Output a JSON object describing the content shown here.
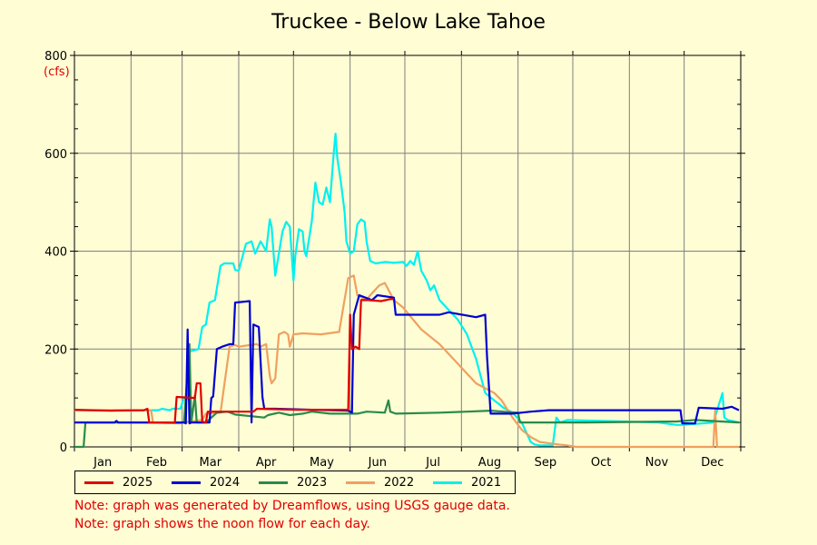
{
  "colors": {
    "background": "#fefdd4",
    "grid": "#808080",
    "axis": "#000000",
    "unit_label": "#e00000",
    "note_text": "#e00000"
  },
  "notes": [
    "Note: graph was generated by Dreamflows, using USGS gauge data.",
    "Note: graph shows the noon flow for each day."
  ],
  "chart_data": {
    "type": "line",
    "title": "Truckee - Below Lake Tahoe",
    "xlabel": "",
    "ylabel": "(cfs)",
    "xlim": [
      0,
      365
    ],
    "ylim": [
      0,
      800
    ],
    "y_ticks": [
      0,
      200,
      400,
      600,
      800
    ],
    "x_ticks": [
      "Jan",
      "Feb",
      "Mar",
      "Apr",
      "May",
      "Jun",
      "Jul",
      "Aug",
      "Sep",
      "Oct",
      "Nov",
      "Dec"
    ],
    "grid": true,
    "legend_position": "bottom",
    "series": [
      {
        "name": "2025",
        "color": "#e00000",
        "points": [
          [
            0,
            76
          ],
          [
            20,
            74
          ],
          [
            38,
            75
          ],
          [
            40,
            78
          ],
          [
            41,
            50
          ],
          [
            55,
            50
          ],
          [
            56,
            102
          ],
          [
            66,
            100
          ],
          [
            67,
            130
          ],
          [
            69,
            130
          ],
          [
            70,
            52
          ],
          [
            72,
            50
          ],
          [
            73,
            72
          ],
          [
            98,
            72
          ],
          [
            100,
            78
          ],
          [
            122,
            76
          ],
          [
            125,
            76
          ],
          [
            150,
            76
          ],
          [
            151,
            270
          ],
          [
            152,
            200
          ],
          [
            154,
            205
          ],
          [
            156,
            200
          ],
          [
            157,
            300
          ],
          [
            159,
            300
          ],
          [
            161,
            300
          ],
          [
            168,
            298
          ],
          [
            173,
            302
          ],
          [
            175,
            302
          ]
        ]
      },
      {
        "name": "2024",
        "color": "#0000d0",
        "points": [
          [
            0,
            50
          ],
          [
            22,
            50
          ],
          [
            23,
            53
          ],
          [
            24,
            50
          ],
          [
            43,
            50
          ],
          [
            60,
            50
          ],
          [
            61,
            48
          ],
          [
            62,
            240
          ],
          [
            63,
            48
          ],
          [
            64,
            50
          ],
          [
            74,
            50
          ],
          [
            75,
            100
          ],
          [
            76,
            103
          ],
          [
            78,
            200
          ],
          [
            81,
            205
          ],
          [
            85,
            210
          ],
          [
            87,
            210
          ],
          [
            88,
            295
          ],
          [
            96,
            298
          ],
          [
            97,
            50
          ],
          [
            98,
            250
          ],
          [
            101,
            245
          ],
          [
            103,
            102
          ],
          [
            104,
            78
          ],
          [
            110,
            78
          ],
          [
            130,
            76
          ],
          [
            150,
            74
          ],
          [
            152,
            70
          ],
          [
            153,
            270
          ],
          [
            156,
            310
          ],
          [
            163,
            300
          ],
          [
            166,
            310
          ],
          [
            175,
            305
          ],
          [
            176,
            270
          ],
          [
            200,
            270
          ],
          [
            205,
            275
          ],
          [
            220,
            265
          ],
          [
            225,
            270
          ],
          [
            226,
            185
          ],
          [
            228,
            68
          ],
          [
            240,
            68
          ],
          [
            250,
            72
          ],
          [
            260,
            75
          ],
          [
            290,
            75
          ],
          [
            320,
            75
          ],
          [
            332,
            75
          ],
          [
            333,
            48
          ],
          [
            340,
            48
          ],
          [
            342,
            80
          ],
          [
            355,
            78
          ],
          [
            360,
            82
          ],
          [
            364,
            75
          ]
        ]
      },
      {
        "name": "2023",
        "color": "#2a8a4a",
        "points": [
          [
            0,
            0
          ],
          [
            5,
            0
          ],
          [
            6,
            50
          ],
          [
            60,
            50
          ],
          [
            63,
            210
          ],
          [
            64,
            50
          ],
          [
            66,
            105
          ],
          [
            67,
            50
          ],
          [
            72,
            50
          ],
          [
            78,
            70
          ],
          [
            84,
            72
          ],
          [
            88,
            66
          ],
          [
            104,
            60
          ],
          [
            106,
            65
          ],
          [
            112,
            70
          ],
          [
            118,
            65
          ],
          [
            125,
            68
          ],
          [
            130,
            72
          ],
          [
            140,
            68
          ],
          [
            155,
            68
          ],
          [
            160,
            72
          ],
          [
            170,
            70
          ],
          [
            172,
            95
          ],
          [
            173,
            72
          ],
          [
            176,
            68
          ],
          [
            200,
            70
          ],
          [
            215,
            72
          ],
          [
            228,
            74
          ],
          [
            235,
            72
          ],
          [
            243,
            70
          ],
          [
            244,
            50
          ],
          [
            280,
            50
          ],
          [
            330,
            52
          ],
          [
            340,
            55
          ],
          [
            364,
            50
          ]
        ]
      },
      {
        "name": "2022",
        "color": "#f0a060",
        "points": [
          [
            0,
            75
          ],
          [
            42,
            75
          ],
          [
            43,
            50
          ],
          [
            58,
            48
          ],
          [
            60,
            50
          ],
          [
            70,
            55
          ],
          [
            72,
            68
          ],
          [
            80,
            70
          ],
          [
            85,
            205
          ],
          [
            88,
            208
          ],
          [
            90,
            205
          ],
          [
            100,
            210
          ],
          [
            102,
            205
          ],
          [
            105,
            210
          ],
          [
            107,
            145
          ],
          [
            108,
            130
          ],
          [
            110,
            140
          ],
          [
            112,
            230
          ],
          [
            115,
            235
          ],
          [
            117,
            230
          ],
          [
            118,
            205
          ],
          [
            120,
            230
          ],
          [
            125,
            232
          ],
          [
            135,
            230
          ],
          [
            145,
            235
          ],
          [
            150,
            345
          ],
          [
            153,
            350
          ],
          [
            155,
            310
          ],
          [
            160,
            300
          ],
          [
            162,
            310
          ],
          [
            167,
            330
          ],
          [
            170,
            335
          ],
          [
            175,
            300
          ],
          [
            180,
            285
          ],
          [
            190,
            240
          ],
          [
            200,
            210
          ],
          [
            210,
            170
          ],
          [
            220,
            130
          ],
          [
            230,
            110
          ],
          [
            234,
            95
          ],
          [
            240,
            60
          ],
          [
            245,
            35
          ],
          [
            250,
            20
          ],
          [
            255,
            10
          ],
          [
            265,
            5
          ],
          [
            270,
            3
          ],
          [
            275,
            0
          ],
          [
            300,
            0
          ],
          [
            340,
            0
          ],
          [
            350,
            0
          ],
          [
            351,
            75
          ],
          [
            352,
            0
          ],
          [
            364,
            0
          ]
        ]
      },
      {
        "name": "2021",
        "color": "#00f0f0",
        "points": [
          [
            0,
            75
          ],
          [
            35,
            75
          ],
          [
            46,
            75
          ],
          [
            48,
            78
          ],
          [
            52,
            75
          ],
          [
            54,
            78
          ],
          [
            58,
            78
          ],
          [
            60,
            100
          ],
          [
            62,
            98
          ],
          [
            63,
            195
          ],
          [
            68,
            200
          ],
          [
            70,
            245
          ],
          [
            72,
            250
          ],
          [
            74,
            295
          ],
          [
            77,
            300
          ],
          [
            80,
            370
          ],
          [
            82,
            375
          ],
          [
            87,
            375
          ],
          [
            88,
            362
          ],
          [
            90,
            360
          ],
          [
            94,
            415
          ],
          [
            97,
            420
          ],
          [
            99,
            395
          ],
          [
            102,
            420
          ],
          [
            105,
            400
          ],
          [
            107,
            465
          ],
          [
            108,
            450
          ],
          [
            110,
            350
          ],
          [
            112,
            395
          ],
          [
            114,
            440
          ],
          [
            116,
            460
          ],
          [
            118,
            450
          ],
          [
            120,
            340
          ],
          [
            121,
            390
          ],
          [
            123,
            445
          ],
          [
            125,
            440
          ],
          [
            126,
            400
          ],
          [
            127,
            390
          ],
          [
            130,
            460
          ],
          [
            132,
            540
          ],
          [
            134,
            500
          ],
          [
            136,
            495
          ],
          [
            138,
            530
          ],
          [
            140,
            500
          ],
          [
            142,
            600
          ],
          [
            143,
            640
          ],
          [
            144,
            590
          ],
          [
            146,
            540
          ],
          [
            148,
            480
          ],
          [
            149,
            420
          ],
          [
            151,
            395
          ],
          [
            153,
            400
          ],
          [
            155,
            455
          ],
          [
            157,
            465
          ],
          [
            159,
            460
          ],
          [
            160,
            420
          ],
          [
            162,
            380
          ],
          [
            165,
            375
          ],
          [
            170,
            378
          ],
          [
            175,
            376
          ],
          [
            180,
            378
          ],
          [
            182,
            370
          ],
          [
            184,
            380
          ],
          [
            186,
            372
          ],
          [
            188,
            400
          ],
          [
            190,
            360
          ],
          [
            193,
            340
          ],
          [
            195,
            320
          ],
          [
            197,
            330
          ],
          [
            200,
            300
          ],
          [
            205,
            280
          ],
          [
            210,
            260
          ],
          [
            215,
            230
          ],
          [
            220,
            180
          ],
          [
            225,
            110
          ],
          [
            230,
            95
          ],
          [
            235,
            80
          ],
          [
            240,
            70
          ],
          [
            245,
            50
          ],
          [
            250,
            10
          ],
          [
            252,
            5
          ],
          [
            255,
            3
          ],
          [
            262,
            3
          ],
          [
            264,
            60
          ],
          [
            266,
            50
          ],
          [
            270,
            55
          ],
          [
            300,
            52
          ],
          [
            320,
            50
          ],
          [
            330,
            45
          ],
          [
            333,
            45
          ],
          [
            350,
            50
          ],
          [
            355,
            110
          ],
          [
            356,
            60
          ],
          [
            358,
            55
          ],
          [
            364,
            50
          ]
        ]
      }
    ]
  }
}
